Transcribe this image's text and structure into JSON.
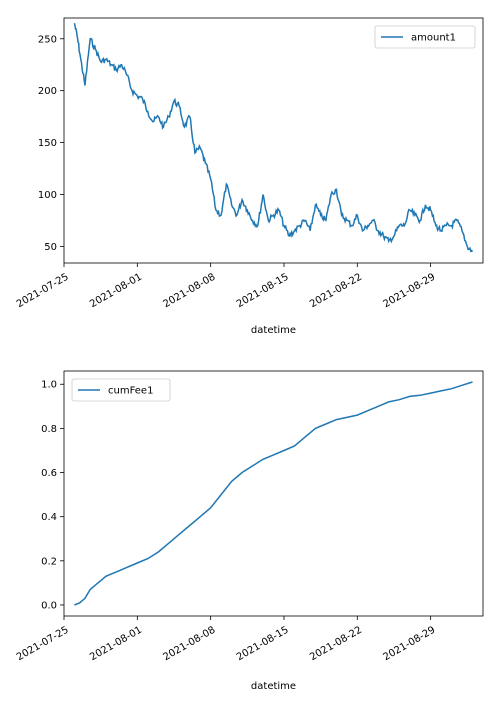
{
  "chart_data": [
    {
      "type": "line",
      "xlabel": "datetime",
      "ylabel": "",
      "ylim": [
        34,
        270
      ],
      "xlim": [
        "2021-07-25",
        "2021-09-03"
      ],
      "yticks": [
        50,
        100,
        150,
        200,
        250
      ],
      "xticks": [
        "2021-07-25",
        "2021-08-01",
        "2021-08-08",
        "2021-08-15",
        "2021-08-22",
        "2021-08-29"
      ],
      "legend": "top-right",
      "grid": false,
      "series": [
        {
          "name": "amount1",
          "color": "#1f77b4",
          "x": [
            "2021-07-26",
            "2021-07-26.3",
            "2021-07-26.6",
            "2021-07-27",
            "2021-07-27.5",
            "2021-07-28",
            "2021-07-28.5",
            "2021-07-29",
            "2021-07-29.5",
            "2021-07-30",
            "2021-07-30.5",
            "2021-07-31",
            "2021-07-31.5",
            "2021-08-01",
            "2021-08-01.5",
            "2021-08-02",
            "2021-08-02.5",
            "2021-08-03",
            "2021-08-03.5",
            "2021-08-04",
            "2021-08-04.5",
            "2021-08-05",
            "2021-08-05.5",
            "2021-08-06",
            "2021-08-06.5",
            "2021-08-07",
            "2021-08-07.5",
            "2021-08-08",
            "2021-08-08.5",
            "2021-08-09",
            "2021-08-09.5",
            "2021-08-10",
            "2021-08-10.5",
            "2021-08-11",
            "2021-08-11.5",
            "2021-08-12",
            "2021-08-12.5",
            "2021-08-13",
            "2021-08-13.5",
            "2021-08-14",
            "2021-08-14.5",
            "2021-08-15",
            "2021-08-15.5",
            "2021-08-16",
            "2021-08-16.5",
            "2021-08-17",
            "2021-08-17.5",
            "2021-08-18",
            "2021-08-18.5",
            "2021-08-19",
            "2021-08-19.5",
            "2021-08-20",
            "2021-08-20.5",
            "2021-08-21",
            "2021-08-21.5",
            "2021-08-22",
            "2021-08-22.5",
            "2021-08-23",
            "2021-08-23.5",
            "2021-08-24",
            "2021-08-24.5",
            "2021-08-25",
            "2021-08-25.5",
            "2021-08-26",
            "2021-08-26.5",
            "2021-08-27",
            "2021-08-27.5",
            "2021-08-28",
            "2021-08-28.5",
            "2021-08-29",
            "2021-08-29.5",
            "2021-08-30",
            "2021-08-30.5",
            "2021-08-31",
            "2021-08-31.5",
            "2021-09-01",
            "2021-09-01.5",
            "2021-09-02"
          ],
          "values": [
            265,
            250,
            230,
            205,
            250,
            240,
            228,
            230,
            225,
            220,
            225,
            215,
            200,
            195,
            192,
            180,
            170,
            175,
            165,
            175,
            190,
            185,
            165,
            175,
            140,
            145,
            130,
            115,
            85,
            80,
            110,
            90,
            80,
            95,
            85,
            75,
            70,
            100,
            75,
            80,
            85,
            70,
            60,
            65,
            70,
            75,
            65,
            90,
            80,
            75,
            100,
            105,
            80,
            75,
            70,
            80,
            65,
            70,
            75,
            65,
            60,
            55,
            60,
            70,
            70,
            85,
            80,
            75,
            90,
            85,
            70,
            65,
            70,
            70,
            75,
            65,
            50,
            45
          ]
        }
      ]
    },
    {
      "type": "line",
      "xlabel": "datetime",
      "ylabel": "",
      "ylim": [
        -0.05,
        1.06
      ],
      "xlim": [
        "2021-07-25",
        "2021-09-03"
      ],
      "yticks": [
        "0.0",
        "0.2",
        "0.4",
        "0.6",
        "0.8",
        "1.0"
      ],
      "xticks": [
        "2021-07-25",
        "2021-08-01",
        "2021-08-08",
        "2021-08-15",
        "2021-08-22",
        "2021-08-29"
      ],
      "legend": "top-left",
      "grid": false,
      "series": [
        {
          "name": "cumFee1",
          "color": "#1f77b4",
          "x_days": [
            0,
            0.5,
            1,
            1.5,
            2,
            2.5,
            3,
            3.5,
            4,
            5,
            6,
            7,
            8,
            9,
            10,
            11,
            12,
            13,
            14,
            15,
            16,
            17,
            18,
            19,
            20,
            21,
            22,
            23,
            24,
            25,
            26,
            27,
            28,
            29,
            30,
            31,
            32,
            33,
            34,
            35,
            36,
            37,
            38
          ],
          "values": [
            0.0,
            0.01,
            0.03,
            0.07,
            0.09,
            0.11,
            0.13,
            0.14,
            0.15,
            0.17,
            0.19,
            0.21,
            0.24,
            0.28,
            0.32,
            0.36,
            0.4,
            0.44,
            0.5,
            0.56,
            0.6,
            0.63,
            0.66,
            0.68,
            0.7,
            0.72,
            0.76,
            0.8,
            0.82,
            0.84,
            0.85,
            0.86,
            0.88,
            0.9,
            0.92,
            0.93,
            0.945,
            0.95,
            0.96,
            0.97,
            0.98,
            0.995,
            1.01
          ]
        }
      ]
    }
  ]
}
